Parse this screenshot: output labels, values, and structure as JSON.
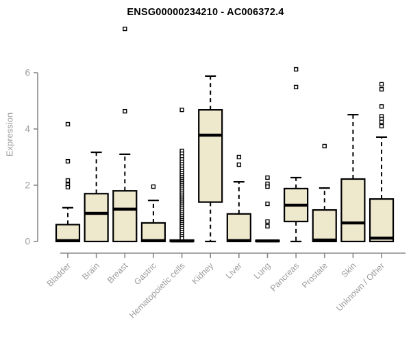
{
  "title": "ENSG00000234210 - AC006372.4",
  "chart_data": {
    "type": "boxplot",
    "title": "ENSG00000234210 - AC006372.4",
    "xlabel": "",
    "ylabel": "Expression",
    "ylim": [
      0,
      6
    ],
    "yticks": [
      0,
      2,
      4,
      6
    ],
    "grid": false,
    "legend": "none",
    "box_fill": "#EEE8CD",
    "box_border": "#000000",
    "median_color": "#000000",
    "axis_color": "#888888",
    "tick_label_color": "#9c9c9c",
    "categories": [
      "Bladder",
      "Brain",
      "Breast",
      "Gastric",
      "Hematopoietic cells",
      "Kidney",
      "Liver",
      "Lung",
      "Pancreas",
      "Prostate",
      "Skin",
      "Unknown / Other"
    ],
    "boxes": [
      {
        "category": "Bladder",
        "whisker_low": 0,
        "q1": 0,
        "median": 0.03,
        "q3": 0.6,
        "whisker_high": 1.2,
        "outliers": [
          4.17,
          2.85,
          2.17,
          2.02,
          1.93
        ]
      },
      {
        "category": "Brain",
        "whisker_low": 0,
        "q1": 0,
        "median": 1.0,
        "q3": 1.7,
        "whisker_high": 3.17,
        "outliers": []
      },
      {
        "category": "Breast",
        "whisker_low": 0,
        "q1": 0,
        "median": 1.15,
        "q3": 1.8,
        "whisker_high": 3.1,
        "outliers": [
          7.56,
          4.63
        ]
      },
      {
        "category": "Gastric",
        "whisker_low": 0,
        "q1": 0,
        "median": 0.03,
        "q3": 0.66,
        "whisker_high": 1.46,
        "outliers": [
          1.95
        ]
      },
      {
        "category": "Hematopoietic cells",
        "whisker_low": 0,
        "q1": 0,
        "median": 0.02,
        "q3": 0.05,
        "whisker_high": 0.05,
        "outliers": [
          4.68,
          3.22,
          3.12,
          3.02,
          2.92,
          2.83,
          2.74,
          2.66,
          2.58,
          2.5,
          2.43,
          2.36,
          2.29,
          2.22,
          2.15,
          2.08,
          2.01,
          1.94,
          1.87,
          1.8,
          1.73,
          1.66,
          1.59,
          1.52,
          1.45,
          1.38,
          1.31,
          1.24,
          1.17,
          1.1,
          1.03,
          0.96,
          0.89,
          0.82,
          0.75,
          0.68,
          0.61,
          0.54,
          0.47,
          0.4,
          0.33,
          0.26,
          0.19,
          0.12
        ]
      },
      {
        "category": "Kidney",
        "whisker_low": 0,
        "q1": 1.4,
        "median": 3.78,
        "q3": 4.68,
        "whisker_high": 5.88,
        "outliers": []
      },
      {
        "category": "Liver",
        "whisker_low": 0,
        "q1": 0,
        "median": 0.03,
        "q3": 0.98,
        "whisker_high": 2.12,
        "outliers": [
          3.0,
          2.73
        ]
      },
      {
        "category": "Lung",
        "whisker_low": 0,
        "q1": 0,
        "median": 0.02,
        "q3": 0.04,
        "whisker_high": 0.04,
        "outliers": [
          2.27,
          2.05,
          1.95,
          1.34,
          0.71,
          0.54
        ]
      },
      {
        "category": "Pancreas",
        "whisker_low": 0,
        "q1": 0.71,
        "median": 1.29,
        "q3": 1.88,
        "whisker_high": 2.27,
        "outliers": [
          6.12,
          5.49
        ]
      },
      {
        "category": "Prostate",
        "whisker_low": 0,
        "q1": 0,
        "median": 0.05,
        "q3": 1.12,
        "whisker_high": 1.9,
        "outliers": [
          3.39
        ]
      },
      {
        "category": "Skin",
        "whisker_low": 0,
        "q1": 0,
        "median": 0.66,
        "q3": 2.22,
        "whisker_high": 4.51,
        "outliers": []
      },
      {
        "category": "Unknown / Other",
        "whisker_low": 0,
        "q1": 0,
        "median": 0.12,
        "q3": 1.51,
        "whisker_high": 3.71,
        "outliers": [
          5.59,
          5.41,
          4.8,
          4.45,
          4.35,
          4.25,
          4.1
        ]
      }
    ]
  }
}
